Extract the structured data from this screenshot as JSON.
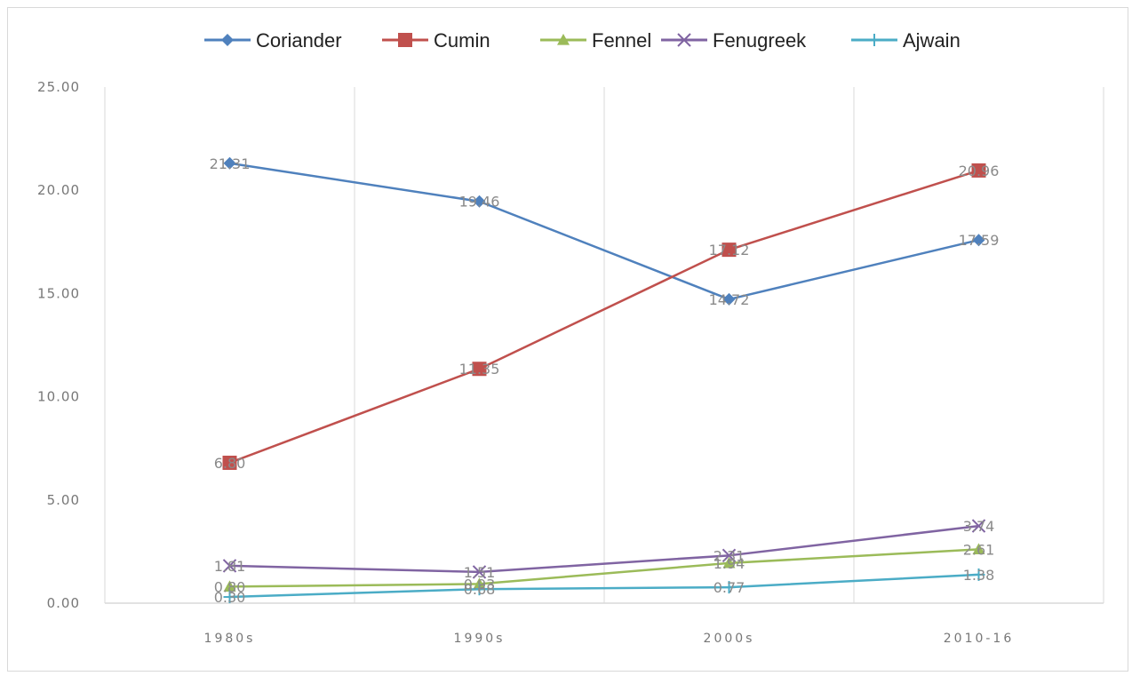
{
  "chart_data": {
    "type": "line",
    "title": "",
    "xlabel": "",
    "ylabel": "",
    "categories": [
      "1980s",
      "1990s",
      "2000s",
      "2010-16"
    ],
    "ylim": [
      0,
      25
    ],
    "yticks": [
      "0.00",
      "5.00",
      "10.00",
      "15.00",
      "20.00",
      "25.00"
    ],
    "grid": "vertical",
    "legend": "top",
    "series": [
      {
        "name": "Coriander",
        "color": "#4f81bd",
        "marker": "diamond",
        "values": [
          21.31,
          19.46,
          14.72,
          17.59
        ]
      },
      {
        "name": "Cumin",
        "color": "#c0504d",
        "marker": "square",
        "values": [
          6.8,
          11.35,
          17.12,
          20.96
        ]
      },
      {
        "name": "Fennel",
        "color": "#9bbb59",
        "marker": "triangle",
        "values": [
          0.8,
          0.93,
          1.94,
          2.61
        ]
      },
      {
        "name": "Fenugreek",
        "color": "#8064a2",
        "marker": "x",
        "values": [
          1.81,
          1.51,
          2.31,
          3.74
        ]
      },
      {
        "name": "Ajwain",
        "color": "#4bacc6",
        "marker": "plus",
        "values": [
          0.3,
          0.68,
          0.77,
          1.38
        ]
      }
    ]
  }
}
